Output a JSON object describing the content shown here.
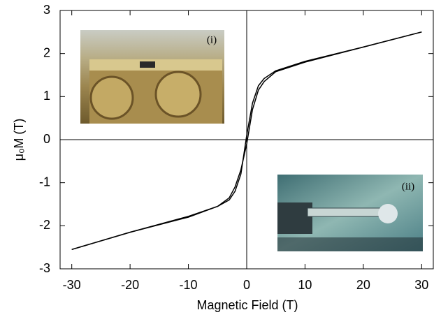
{
  "chart_data": {
    "type": "line",
    "xlabel": "Magnetic Field (T)",
    "ylabel": "μ₀M  (T)",
    "xlim": [
      -32,
      32
    ],
    "ylim": [
      -3,
      3
    ],
    "xticks": [
      -30,
      -20,
      -10,
      0,
      10,
      20,
      30
    ],
    "yticks": [
      -3,
      -2,
      -1,
      0,
      1,
      2,
      3
    ],
    "series": [
      {
        "color": "#000000",
        "x": [
          -30,
          -20,
          -10,
          -5,
          -3,
          -2,
          -1,
          0,
          1,
          2,
          3,
          5,
          10,
          20,
          30
        ],
        "values": [
          -2.55,
          -2.15,
          -1.78,
          -1.55,
          -1.35,
          -1.1,
          -0.7,
          -0.1,
          0.7,
          1.15,
          1.35,
          1.58,
          1.8,
          2.15,
          2.5
        ]
      },
      {
        "color": "#000000",
        "x": [
          -30,
          -20,
          -10,
          -5,
          -3,
          -2,
          -1,
          0,
          1,
          2,
          3,
          5,
          10,
          20,
          30
        ],
        "values": [
          -2.55,
          -2.15,
          -1.8,
          -1.55,
          -1.4,
          -1.2,
          -0.8,
          0.1,
          0.85,
          1.25,
          1.42,
          1.6,
          1.82,
          2.15,
          2.5
        ]
      }
    ],
    "insets": [
      {
        "label": "(i)"
      },
      {
        "label": "(ii)"
      }
    ]
  }
}
